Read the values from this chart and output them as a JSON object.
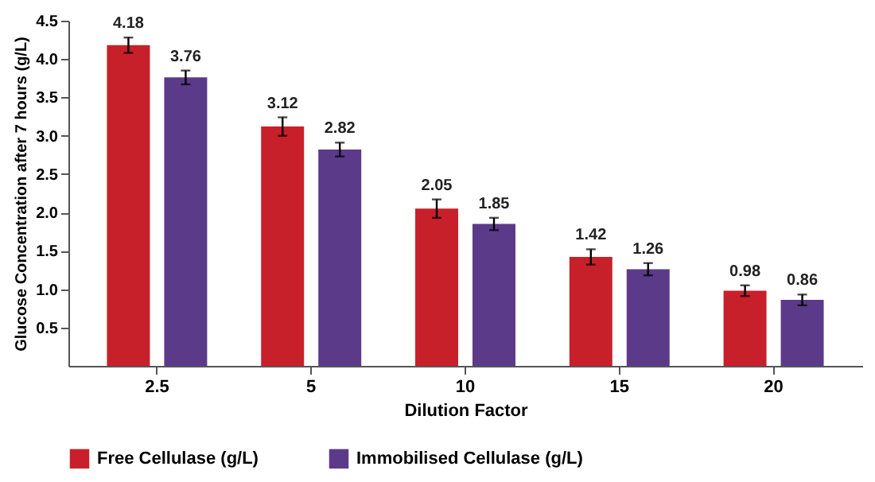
{
  "chart_data": {
    "type": "bar",
    "xlabel": "Dilution Factor",
    "ylabel": "Glucose Concentration after 7 hours (g/L)",
    "categories": [
      "2.5",
      "5",
      "10",
      "15",
      "20"
    ],
    "series": [
      {
        "name": "Free Cellulase  (g/L)",
        "color": "#c8202a",
        "values": [
          4.18,
          3.12,
          2.05,
          1.42,
          0.98
        ],
        "errors": [
          0.1,
          0.12,
          0.12,
          0.1,
          0.07
        ]
      },
      {
        "name": "Immobilised Cellulase (g/L)",
        "color": "#5b3a8a",
        "values": [
          3.76,
          2.82,
          1.85,
          1.26,
          0.86
        ],
        "errors": [
          0.09,
          0.09,
          0.08,
          0.08,
          0.07
        ]
      }
    ],
    "ylim": [
      0,
      4.5
    ],
    "yticks": [
      0.5,
      {
        "value": 1,
        "label": "1.0"
      },
      1.5,
      {
        "value": 2,
        "label": "2.0"
      },
      2.5,
      {
        "value": 3,
        "label": "3.0"
      },
      3.5,
      {
        "value": 4,
        "label": "4.0"
      },
      4.5
    ],
    "data_labels": true,
    "grid": false,
    "legend": "bottom"
  }
}
